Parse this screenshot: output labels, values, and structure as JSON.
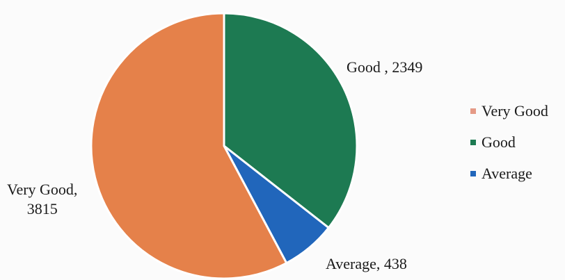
{
  "chart_data": {
    "type": "pie",
    "title": "",
    "legend_position": "right",
    "slices": [
      {
        "label": "Very Good",
        "value": 3815,
        "color": "#e5814a",
        "data_label": "Very Good,\n3815"
      },
      {
        "label": "Good",
        "value": 2349,
        "color": "#1d7a52",
        "data_label": "Good , 2349"
      },
      {
        "label": "Average",
        "value": 438,
        "color": "#2166bb",
        "data_label": "Average, 438"
      }
    ],
    "legend": [
      {
        "label": "Very Good",
        "swatch_color": "#e59a86"
      },
      {
        "label": "Good",
        "swatch_color": "#1d7a52"
      },
      {
        "label": "Average",
        "swatch_color": "#2166bb"
      }
    ]
  }
}
